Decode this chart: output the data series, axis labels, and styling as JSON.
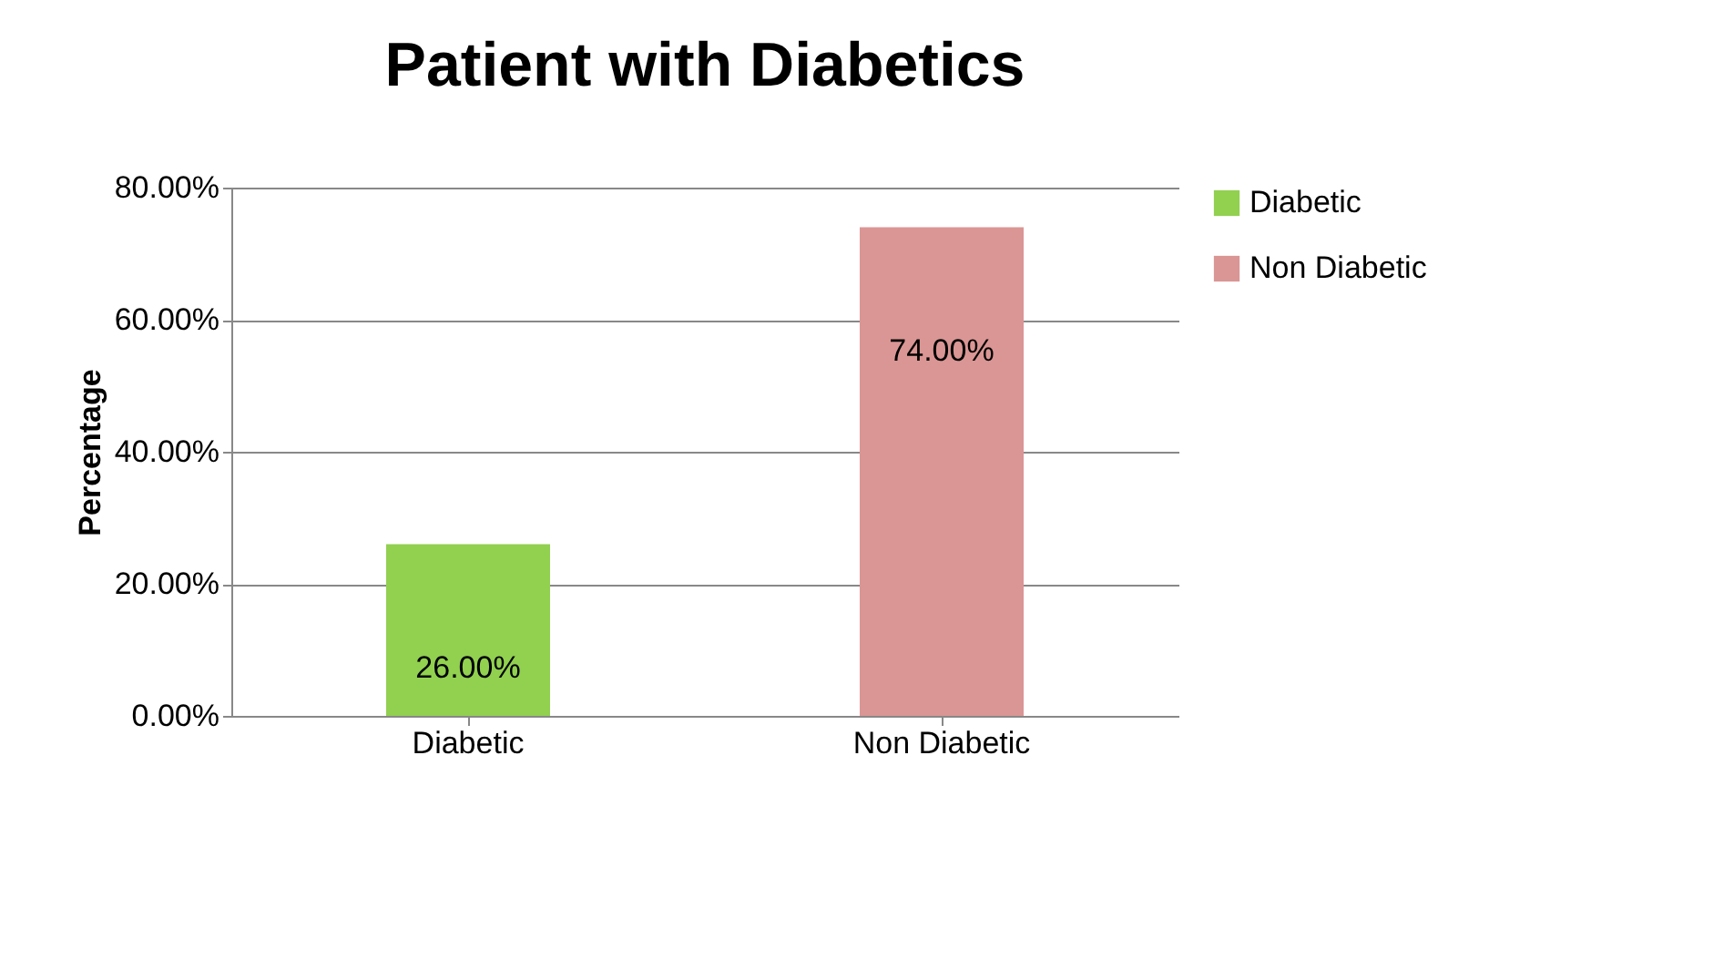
{
  "chart_data": {
    "type": "bar",
    "title": "Patient with Diabetics",
    "ylabel": "Percentage",
    "categories": [
      "Diabetic",
      "Non Diabetic"
    ],
    "series": [
      {
        "name": "Diabetic",
        "color": "#92d050",
        "values": [
          26,
          null
        ],
        "value_labels": [
          "26.00%",
          null
        ]
      },
      {
        "name": "Non Diabetic",
        "color": "#da9694",
        "values": [
          null,
          74
        ],
        "value_labels": [
          null,
          "74.00%"
        ]
      }
    ],
    "ylim": [
      0,
      80
    ],
    "yticks": [
      {
        "value": 0,
        "label": "0.00%"
      },
      {
        "value": 20,
        "label": "20.00%"
      },
      {
        "value": 40,
        "label": "40.00%"
      },
      {
        "value": 60,
        "label": "60.00%"
      },
      {
        "value": 80,
        "label": "80.00%"
      }
    ],
    "grid": "y",
    "legend": "right"
  }
}
